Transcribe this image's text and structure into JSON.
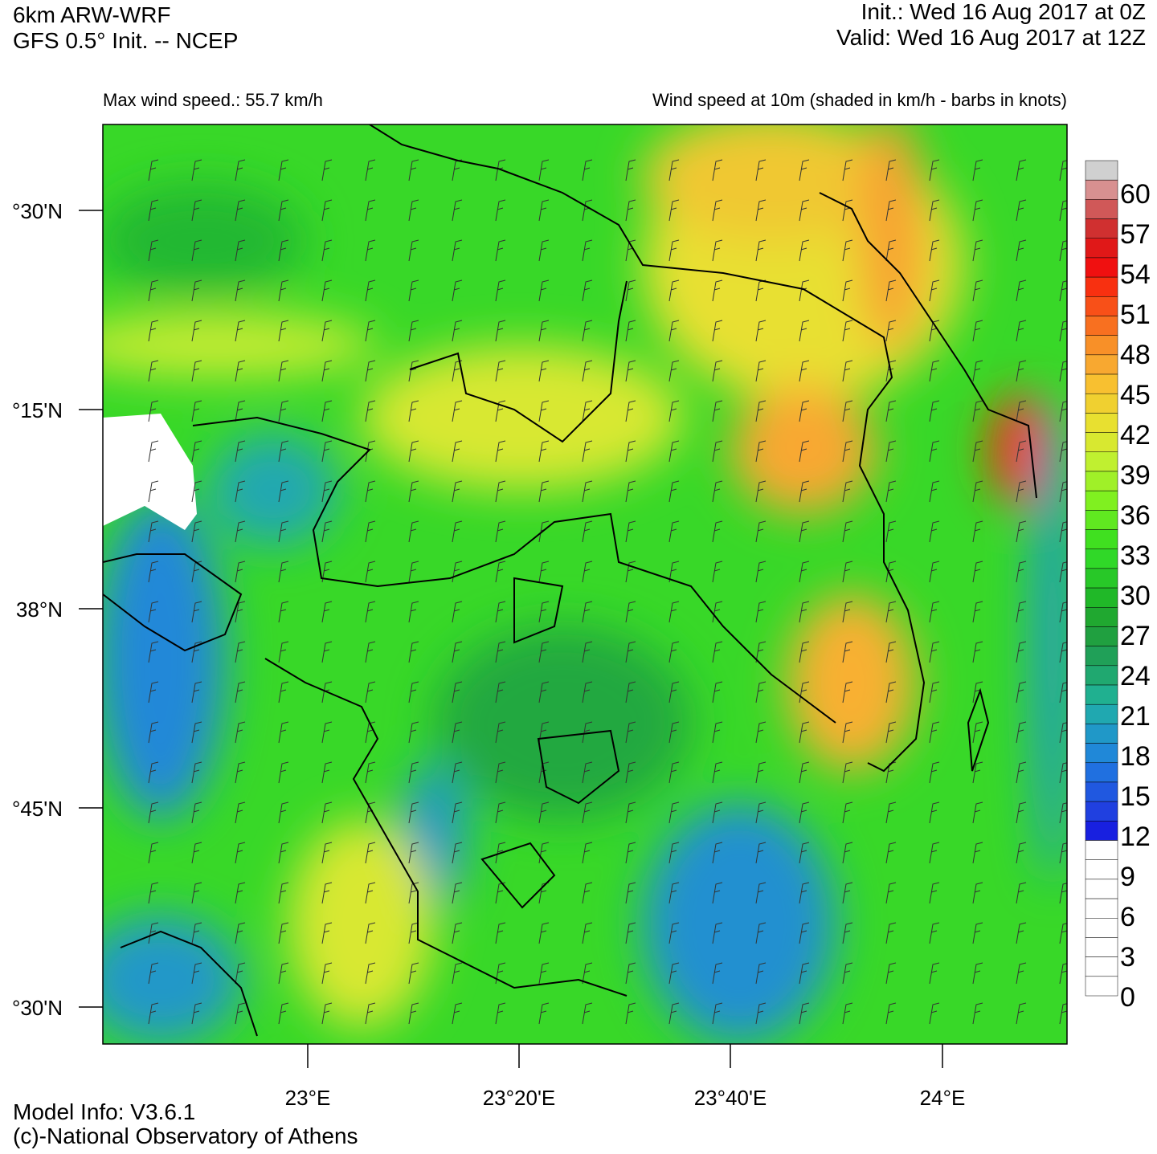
{
  "header": {
    "model": "6km ARW-WRF",
    "init_source": "GFS 0.5° Init. -- NCEP",
    "init": "Init.:  Wed 16 Aug 2017 at 0Z",
    "valid": "Valid: Wed 16 Aug 2017 at 12Z"
  },
  "subtitle_left": "Max wind speed.: 55.7 km/h",
  "subtitle_right": "Wind speed at 10m (shaded in km/h - barbs in knots)",
  "lat_labels": [
    "°30'N",
    "°15'N",
    "38°N",
    "°45'N",
    "°30'N"
  ],
  "lon_labels": [
    "23°E",
    "23°20'E",
    "23°40'E",
    "24°E"
  ],
  "colorbar": {
    "labels": [
      60,
      57,
      54,
      51,
      48,
      45,
      42,
      39,
      36,
      33,
      30,
      27,
      24,
      21,
      18,
      15,
      12,
      9,
      6,
      3,
      0
    ],
    "colors": [
      "#d0d0d0",
      "#d89090",
      "#d05858",
      "#d03030",
      "#e01818",
      "#f01010",
      "#f83010",
      "#f85018",
      "#f87020",
      "#f89028",
      "#f8a830",
      "#f8c030",
      "#f0d030",
      "#e8e030",
      "#d8e830",
      "#c0f030",
      "#a0f028",
      "#80f020",
      "#60e820",
      "#40e020",
      "#30d828",
      "#28c828",
      "#20b828",
      "#20a830",
      "#20a040",
      "#20a058",
      "#20a870",
      "#20b090",
      "#20a8b0",
      "#2098c8",
      "#2088d8",
      "#2070e0",
      "#2058e0",
      "#2040e0",
      "#1820e0",
      "#ffffff",
      "#ffffff",
      "#ffffff",
      "#ffffff",
      "#ffffff",
      "#ffffff",
      "#ffffff",
      "#ffffff"
    ]
  },
  "footer": {
    "model_info": "Model Info: V3.6.1",
    "credit": "(c)-National Observatory of Athens"
  }
}
